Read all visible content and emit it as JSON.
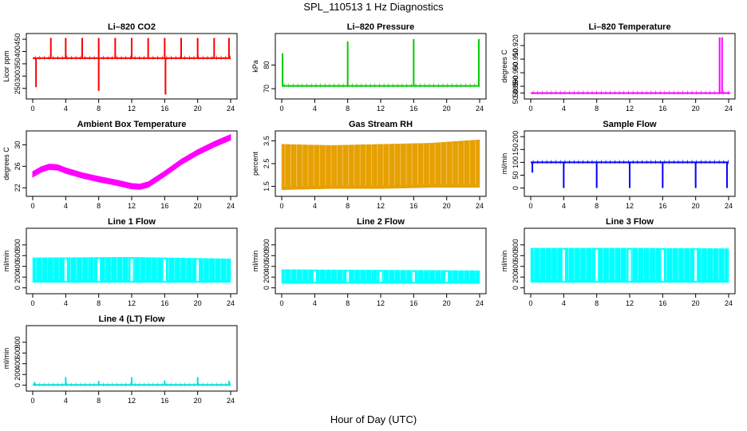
{
  "page": {
    "title": "SPL_110513  1 Hz Diagnostics",
    "xlabel": "Hour of Day (UTC)"
  },
  "chart_data": [
    {
      "type": "line",
      "title": "Li–820 CO2",
      "ylabel": "Licor ppm",
      "color": "#ff0000",
      "xlim": [
        0,
        24
      ],
      "x_ticks": [
        "0",
        "4",
        "8",
        "12",
        "16",
        "20",
        "24"
      ],
      "ylim": [
        220,
        460
      ],
      "y_ticks": [
        "250",
        "300",
        "350",
        "400",
        "450"
      ],
      "baseline": 373,
      "spikes": [
        {
          "x": 0.4,
          "y": 255
        },
        {
          "x": 2.2,
          "y": 455
        },
        {
          "x": 4.0,
          "y": 455
        },
        {
          "x": 6.0,
          "y": 455
        },
        {
          "x": 8.0,
          "y": 455
        },
        {
          "x": 8.0,
          "y": 240
        },
        {
          "x": 10.0,
          "y": 455
        },
        {
          "x": 12.0,
          "y": 455
        },
        {
          "x": 14.0,
          "y": 455
        },
        {
          "x": 16.0,
          "y": 455
        },
        {
          "x": 16.1,
          "y": 225
        },
        {
          "x": 18.0,
          "y": 455
        },
        {
          "x": 20.0,
          "y": 455
        },
        {
          "x": 22.0,
          "y": 455
        },
        {
          "x": 23.8,
          "y": 455
        }
      ]
    },
    {
      "type": "line",
      "title": "Li–820 Pressure",
      "ylabel": "kPa",
      "color": "#00cc00",
      "xlim": [
        0,
        24
      ],
      "x_ticks": [
        "0",
        "4",
        "8",
        "12",
        "16",
        "20",
        "24"
      ],
      "ylim": [
        67,
        92
      ],
      "y_ticks": [
        "70",
        "80"
      ],
      "baseline": 71.2,
      "spikes": [
        {
          "x": 0.1,
          "y": 85
        },
        {
          "x": 8.0,
          "y": 90
        },
        {
          "x": 16.0,
          "y": 91
        },
        {
          "x": 23.9,
          "y": 91
        }
      ]
    },
    {
      "type": "line",
      "title": "Li–820 Temperature",
      "ylabel": "degrees C",
      "color": "#ff00ff",
      "xlim": [
        0,
        24
      ],
      "x_ticks": [
        "0",
        "4",
        "8",
        "12",
        "16",
        "20",
        "24"
      ],
      "ylim": [
        50.883,
        50.9265
      ],
      "y_ticks": [
        "50.885",
        "50.890",
        "50.900",
        "50.910",
        "50.920"
      ],
      "baseline": 50.885,
      "spikes": [
        {
          "x": 22.9,
          "y": 50.926
        },
        {
          "x": 23.2,
          "y": 50.926
        }
      ]
    },
    {
      "type": "area",
      "title": "Ambient Box Temperature",
      "ylabel": "degrees C",
      "color": "#ff00ff",
      "xlim": [
        0,
        24
      ],
      "x_ticks": [
        "0",
        "4",
        "8",
        "12",
        "16",
        "20",
        "24"
      ],
      "ylim": [
        21,
        32
      ],
      "y_ticks": [
        "22",
        "26",
        "30"
      ],
      "x": [
        0,
        1,
        2,
        3,
        4,
        6,
        8,
        10,
        12,
        13,
        14,
        16,
        18,
        20,
        22,
        24
      ],
      "y": [
        24.5,
        25.4,
        25.9,
        25.8,
        25.2,
        24.3,
        23.6,
        23.0,
        22.3,
        22.2,
        22.6,
        24.6,
        26.8,
        28.6,
        30.1,
        31.4
      ],
      "band": 0.5
    },
    {
      "type": "area",
      "title": "Gas Stream RH",
      "ylabel": "percent",
      "color": "#e6a000",
      "xlim": [
        0,
        24
      ],
      "x_ticks": [
        "0",
        "4",
        "8",
        "12",
        "16",
        "20",
        "24"
      ],
      "ylim": [
        1.2,
        3.8
      ],
      "y_ticks": [
        "1.5",
        "2.5",
        "3.5"
      ],
      "x": [
        0,
        6,
        12,
        18,
        24
      ],
      "upper": [
        3.35,
        3.3,
        3.35,
        3.4,
        3.55
      ],
      "lower": [
        1.35,
        1.4,
        1.4,
        1.45,
        1.45
      ]
    },
    {
      "type": "line",
      "title": "Sample Flow",
      "ylabel": "ml/min",
      "color": "#0000ff",
      "xlim": [
        0,
        24
      ],
      "x_ticks": [
        "0",
        "4",
        "8",
        "12",
        "16",
        "20",
        "24"
      ],
      "ylim": [
        -20,
        210
      ],
      "y_ticks": [
        "0",
        "50",
        "100",
        "150",
        "200"
      ],
      "baseline": 100,
      "dips": [
        {
          "x": 0.2,
          "y": 60
        },
        {
          "x": 4.0,
          "y": 0
        },
        {
          "x": 8.0,
          "y": 0
        },
        {
          "x": 12.0,
          "y": 0
        },
        {
          "x": 16.0,
          "y": 0
        },
        {
          "x": 20.0,
          "y": 0
        },
        {
          "x": 23.8,
          "y": 0
        }
      ]
    },
    {
      "type": "area",
      "title": "Line 1 Flow",
      "ylabel": "ml/min",
      "color": "#00ffff",
      "xlim": [
        0,
        24
      ],
      "x_ticks": [
        "0",
        "4",
        "8",
        "12",
        "16",
        "20",
        "24"
      ],
      "ylim": [
        -50,
        1050
      ],
      "y_ticks": [
        "0",
        "200",
        "400",
        "600",
        "800"
      ],
      "x": [
        0,
        12,
        24
      ],
      "upper": [
        560,
        570,
        540
      ],
      "lower": [
        100,
        100,
        100
      ],
      "gaps": [
        4,
        8,
        12,
        16,
        20
      ]
    },
    {
      "type": "area",
      "title": "Line 2 Flow",
      "ylabel": "ml/min",
      "color": "#00ffff",
      "xlim": [
        0,
        24
      ],
      "x_ticks": [
        "0",
        "4",
        "8",
        "12",
        "16",
        "20",
        "24"
      ],
      "ylim": [
        -50,
        1050
      ],
      "y_ticks": [
        "0",
        "200",
        "400",
        "600",
        "800"
      ],
      "x": [
        0,
        12,
        24
      ],
      "upper": [
        340,
        330,
        320
      ],
      "lower": [
        80,
        80,
        80
      ],
      "gaps": [
        4,
        8,
        12,
        16,
        20
      ]
    },
    {
      "type": "area",
      "title": "Line 3 Flow",
      "ylabel": "ml/min",
      "color": "#00ffff",
      "xlim": [
        0,
        24
      ],
      "x_ticks": [
        "0",
        "4",
        "8",
        "12",
        "16",
        "20",
        "24"
      ],
      "ylim": [
        -50,
        1050
      ],
      "y_ticks": [
        "0",
        "200",
        "400",
        "600",
        "800"
      ],
      "x": [
        0,
        12,
        24
      ],
      "upper": [
        740,
        740,
        730
      ],
      "lower": [
        100,
        100,
        100
      ],
      "gaps": [
        4,
        8,
        12,
        16,
        20
      ]
    },
    {
      "type": "line",
      "title": "Line 4 (LT) Flow",
      "ylabel": "ml/min",
      "color": "#00e0e0",
      "xlim": [
        0,
        24
      ],
      "x_ticks": [
        "0",
        "4",
        "8",
        "12",
        "16",
        "20",
        "24"
      ],
      "ylim": [
        -50,
        1050
      ],
      "y_ticks": [
        "0",
        "200",
        "400",
        "600",
        "800"
      ],
      "baseline": 5,
      "spikes": [
        {
          "x": 0.2,
          "y": 60
        },
        {
          "x": 4.0,
          "y": 150
        },
        {
          "x": 8.0,
          "y": 80
        },
        {
          "x": 12.0,
          "y": 150
        },
        {
          "x": 16.0,
          "y": 90
        },
        {
          "x": 20.0,
          "y": 150
        },
        {
          "x": 23.8,
          "y": 80
        }
      ]
    }
  ]
}
